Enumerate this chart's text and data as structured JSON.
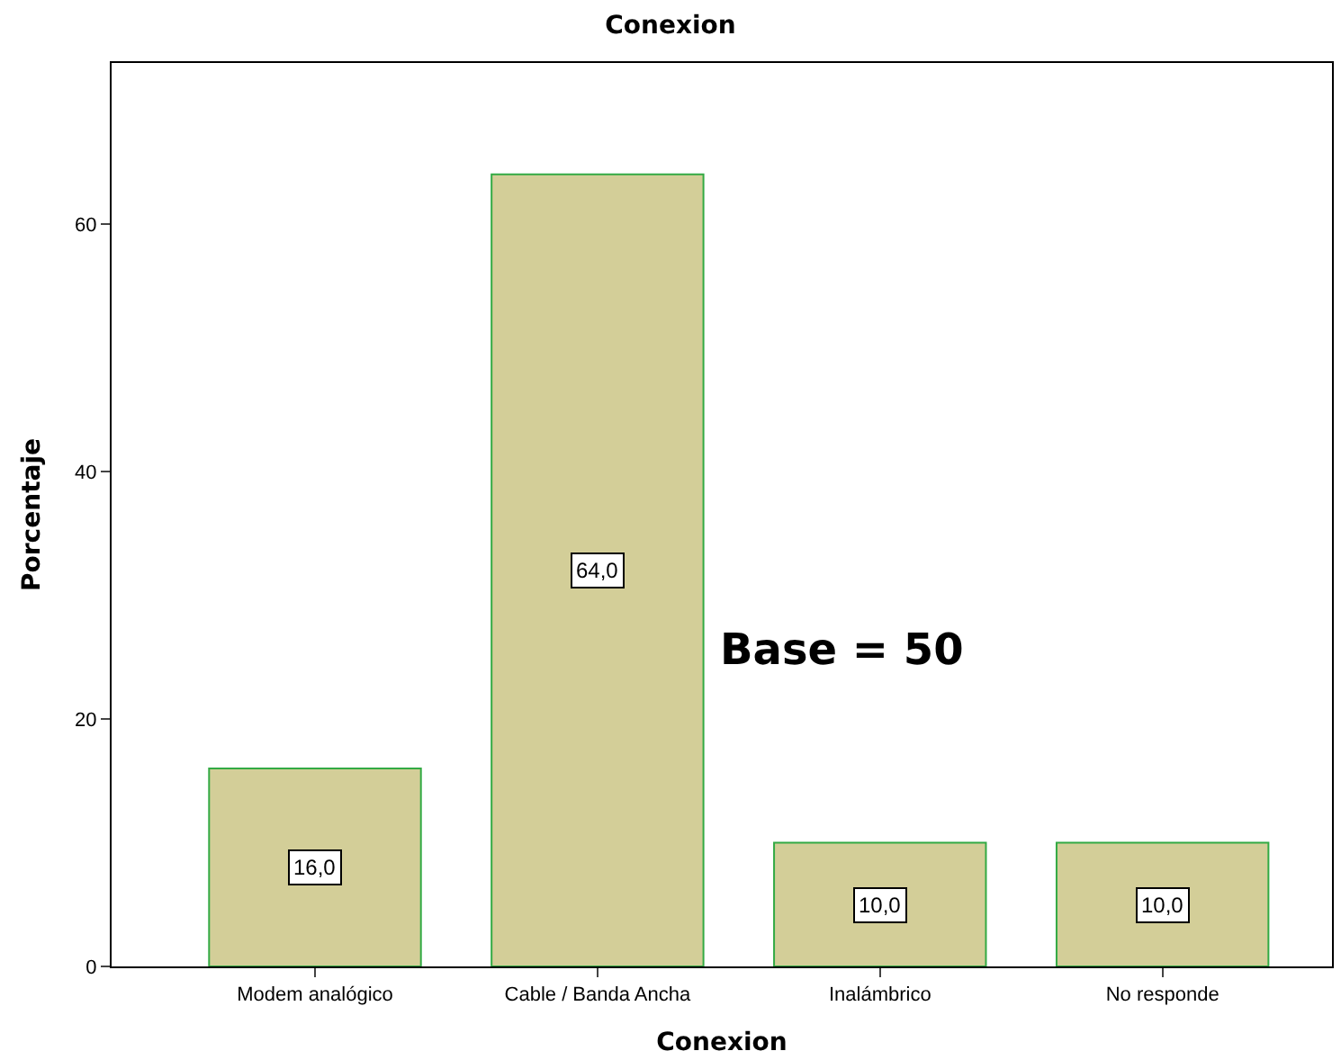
{
  "chart_data": {
    "type": "bar",
    "title": "Conexion",
    "xlabel": "Conexion",
    "ylabel": "Porcentaje",
    "categories": [
      "Modem analógico",
      "Cable / Banda Ancha",
      "Inalámbrico",
      "No responde"
    ],
    "values": [
      16.0,
      64.0,
      10.0,
      10.0
    ],
    "value_labels": [
      "16,0",
      "64,0",
      "10,0",
      "10,0"
    ],
    "color": "#d3ce98",
    "ylim": [
      0,
      73
    ],
    "yticks": [
      0,
      20,
      40,
      60
    ],
    "legend": false,
    "annotations": [
      "Base = 50"
    ]
  }
}
